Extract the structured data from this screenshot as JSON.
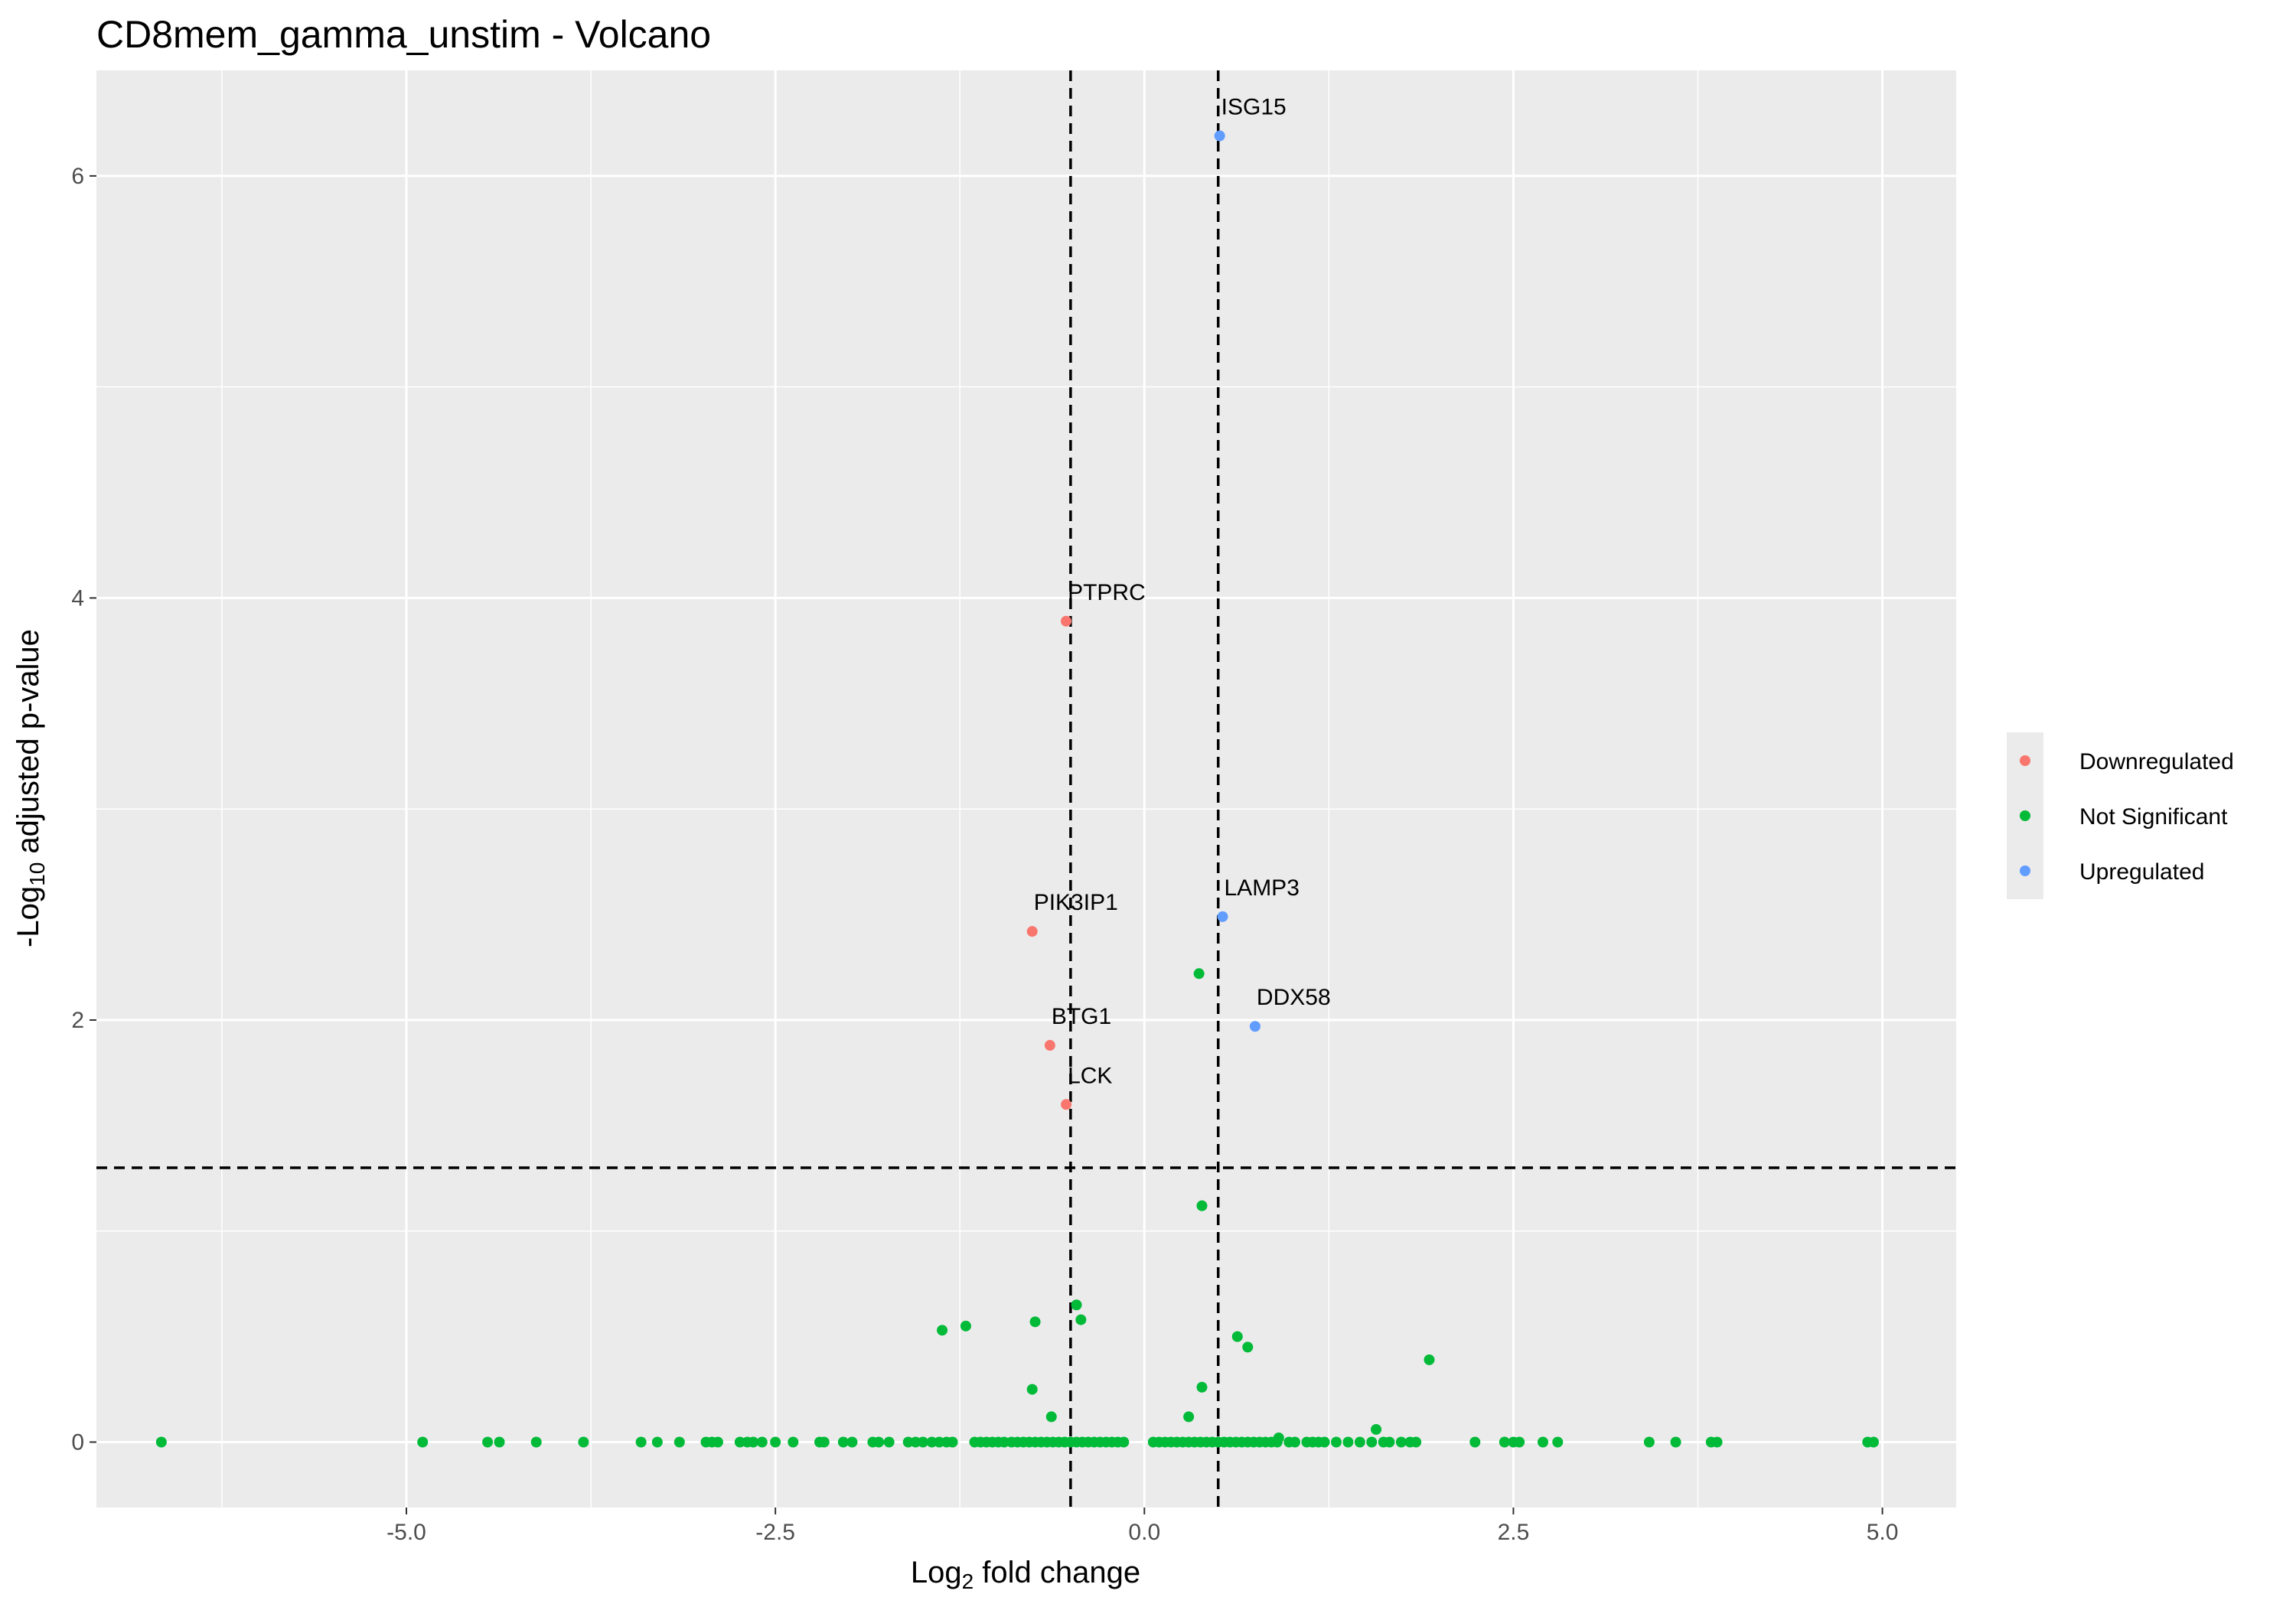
{
  "chart_data": {
    "type": "scatter",
    "title": "CD8mem_gamma_unstim - Volcano",
    "xlabel_main": "Log",
    "xlabel_sub": "2",
    "xlabel_rest": " fold change",
    "ylabel_main": "-Log",
    "ylabel_sub": "10",
    "ylabel_rest": " adjusted p-value",
    "xlim": [
      -7.1,
      5.5
    ],
    "ylim": [
      -0.31,
      6.5
    ],
    "x_ticks": [
      -5.0,
      -2.5,
      0.0,
      2.5,
      5.0
    ],
    "x_tick_labels": [
      "-5.0",
      "-2.5",
      "0.0",
      "2.5",
      "5.0"
    ],
    "y_ticks": [
      0,
      2,
      4,
      6
    ],
    "y_tick_labels": [
      "0",
      "2",
      "4",
      "6"
    ],
    "grid": true,
    "thresholds": {
      "x": [
        -0.5,
        0.5
      ],
      "y": 1.3
    },
    "legend": {
      "position": "right",
      "entries": [
        {
          "name": "Downregulated",
          "color": "#F8766D"
        },
        {
          "name": "Not Significant",
          "color": "#00BA38"
        },
        {
          "name": "Upregulated",
          "color": "#619CFF"
        }
      ]
    },
    "labeled_points": [
      {
        "gene": "ISG15",
        "x": 0.51,
        "y": 6.19,
        "group": "Upregulated"
      },
      {
        "gene": "PTPRC",
        "x": -0.53,
        "y": 3.89,
        "group": "Downregulated"
      },
      {
        "gene": "PIK3IP1",
        "x": -0.76,
        "y": 2.42,
        "group": "Downregulated"
      },
      {
        "gene": "LAMP3",
        "x": 0.53,
        "y": 2.49,
        "group": "Upregulated"
      },
      {
        "gene": "DDX58",
        "x": 0.75,
        "y": 1.97,
        "group": "Upregulated"
      },
      {
        "gene": "BTG1",
        "x": -0.64,
        "y": 1.88,
        "group": "Downregulated"
      },
      {
        "gene": "LCK",
        "x": -0.53,
        "y": 1.6,
        "group": "Downregulated"
      }
    ],
    "other_points": {
      "group": "Not Significant",
      "x": [
        0.37,
        0.39,
        -0.46,
        -1.21,
        -0.43,
        -0.74,
        -1.37,
        0.63,
        0.7,
        1.93,
        -0.76,
        0.39,
        -0.63,
        0.3,
        0.91,
        1.57,
        -6.66,
        -4.89,
        -4.45,
        -4.37,
        -4.12,
        -3.8,
        -3.41,
        -3.3,
        -3.15,
        -2.97,
        -2.93,
        -2.89,
        -2.74,
        -2.69,
        -2.65,
        -2.59,
        -2.5,
        -2.38,
        -2.2,
        -2.17,
        -2.04,
        -1.98,
        -1.84,
        -1.8,
        -1.73,
        -1.6,
        -1.55,
        -1.5,
        -1.44,
        -1.39,
        -1.34,
        -1.3,
        -1.15,
        -1.11,
        -1.07,
        -1.03,
        -0.99,
        -0.95,
        -0.9,
        -0.86,
        -0.82,
        -0.78,
        -0.74,
        -0.7,
        -0.66,
        -0.62,
        -0.58,
        -0.54,
        -0.5,
        -0.46,
        -0.42,
        -0.38,
        -0.34,
        -0.3,
        -0.26,
        -0.22,
        -0.18,
        -0.14,
        0.06,
        0.1,
        0.14,
        0.18,
        0.22,
        0.26,
        0.3,
        0.34,
        0.38,
        0.42,
        0.46,
        0.5,
        0.54,
        0.58,
        0.62,
        0.66,
        0.7,
        0.74,
        0.78,
        0.82,
        0.86,
        0.9,
        0.98,
        1.02,
        1.1,
        1.14,
        1.18,
        1.22,
        1.3,
        1.38,
        1.46,
        1.54,
        1.62,
        1.66,
        1.74,
        1.8,
        1.84,
        2.24,
        2.44,
        2.5,
        2.54,
        2.7,
        2.8,
        3.42,
        3.6,
        3.84,
        3.88,
        4.9,
        4.94
      ],
      "y": [
        2.22,
        1.12,
        0.65,
        0.55,
        0.58,
        0.57,
        0.53,
        0.5,
        0.45,
        0.39,
        0.25,
        0.26,
        0.12,
        0.12,
        0.02,
        0.06,
        0,
        0,
        0,
        0,
        0,
        0,
        0,
        0,
        0,
        0,
        0,
        0,
        0,
        0,
        0,
        0,
        0,
        0,
        0,
        0,
        0,
        0,
        0,
        0,
        0,
        0,
        0,
        0,
        0,
        0,
        0,
        0,
        0,
        0,
        0,
        0,
        0,
        0,
        0,
        0,
        0,
        0,
        0,
        0,
        0,
        0,
        0,
        0,
        0,
        0,
        0,
        0,
        0,
        0,
        0,
        0,
        0,
        0,
        0,
        0,
        0,
        0,
        0,
        0,
        0,
        0,
        0,
        0,
        0,
        0,
        0,
        0,
        0,
        0,
        0,
        0,
        0,
        0,
        0,
        0,
        0,
        0,
        0,
        0,
        0,
        0,
        0,
        0,
        0,
        0,
        0,
        0,
        0,
        0,
        0,
        0,
        0,
        0,
        0,
        0,
        0,
        0,
        0,
        0,
        0,
        0,
        0
      ]
    }
  }
}
